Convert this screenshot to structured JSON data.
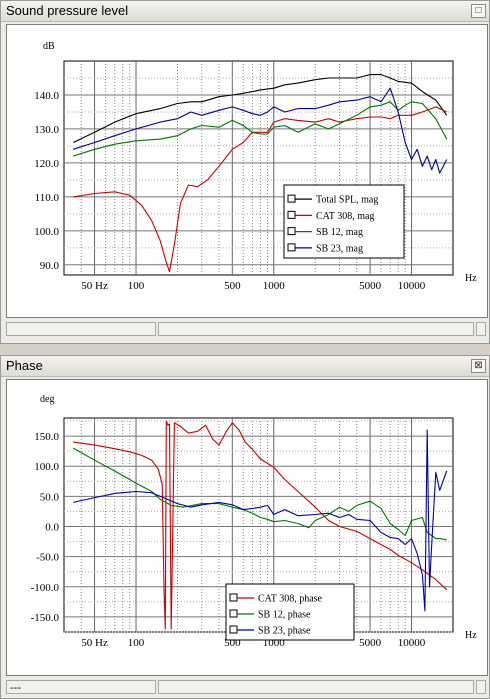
{
  "spl_window": {
    "title": "Sound pressure level",
    "close_glyph": "□",
    "status_cells": [
      "",
      "",
      ""
    ]
  },
  "phase_window": {
    "title": "Phase",
    "close_glyph": "⊠",
    "status_cells": [
      "---",
      "",
      ""
    ]
  },
  "chart_data": [
    {
      "type": "line",
      "x_scale": "log",
      "xlim": [
        30,
        20000
      ],
      "ylim": [
        87,
        150
      ],
      "grid": true,
      "legend_position": "bottom-right",
      "ylabel": "dB",
      "xlabel": "Hz",
      "yticks": [
        "140.0",
        "130.0",
        "120.0",
        "110.0",
        "100.0",
        "90.0"
      ],
      "ytick_values": [
        140,
        130,
        120,
        110,
        100,
        90
      ],
      "xticks": [
        "50 Hz",
        "100",
        "500",
        "1000",
        "5000",
        "10000"
      ],
      "xtick_values": [
        50,
        100,
        500,
        1000,
        5000,
        10000
      ],
      "series": [
        {
          "name": "Total SPL, mag",
          "color": "#000000",
          "x": [
            35,
            50,
            70,
            100,
            150,
            200,
            250,
            300,
            400,
            500,
            600,
            700,
            800,
            1000,
            1200,
            1500,
            2000,
            2500,
            3000,
            4000,
            5000,
            6000,
            7000,
            8000,
            10000,
            12000,
            15000,
            18000
          ],
          "y": [
            126,
            129,
            132,
            134.5,
            136,
            137.5,
            138,
            138,
            139.5,
            140,
            140.5,
            141,
            141.5,
            142,
            143,
            143.5,
            144.5,
            145,
            145,
            145,
            146,
            146,
            145,
            144,
            143.5,
            141,
            138.5,
            134
          ]
        },
        {
          "name": "CAT 308, mag",
          "color": "#cc0000",
          "x": [
            35,
            50,
            70,
            90,
            110,
            130,
            150,
            165,
            175,
            190,
            210,
            240,
            280,
            330,
            400,
            500,
            600,
            700,
            800,
            900,
            1000,
            1200,
            1500,
            2000,
            2500,
            3000,
            4000,
            5000,
            6000,
            7000,
            8000,
            10000,
            12000,
            15000,
            18000
          ],
          "y": [
            110,
            111,
            111.5,
            110.5,
            107.5,
            103,
            97,
            91,
            88,
            96,
            108,
            113.5,
            113,
            115,
            119,
            124,
            126,
            129,
            129,
            129,
            132,
            133,
            132.5,
            132,
            133,
            132,
            133,
            133.5,
            133.5,
            133,
            134,
            134,
            135,
            136.5,
            135
          ]
        },
        {
          "name": "SB 12, mag",
          "color": "#007700",
          "x": [
            35,
            50,
            70,
            100,
            150,
            200,
            250,
            300,
            400,
            500,
            600,
            700,
            800,
            900,
            1000,
            1200,
            1500,
            2000,
            2500,
            3000,
            4000,
            5000,
            6000,
            7000,
            8000,
            9000,
            10000,
            12000,
            15000,
            18000
          ],
          "y": [
            122,
            124,
            125.5,
            126.5,
            127,
            128,
            130,
            131,
            130.5,
            132.5,
            131,
            129,
            128.5,
            128.5,
            130.5,
            131,
            129,
            131.5,
            130,
            131.5,
            134,
            136.5,
            137,
            138,
            135.5,
            137,
            138,
            137.5,
            133,
            127
          ]
        },
        {
          "name": "SB 23, mag",
          "color": "#000099",
          "x": [
            35,
            50,
            70,
            100,
            150,
            200,
            250,
            300,
            400,
            500,
            600,
            700,
            800,
            900,
            1000,
            1200,
            1500,
            2000,
            2500,
            3000,
            4000,
            5000,
            6000,
            7000,
            8000,
            9000,
            10000,
            11000,
            12000,
            13000,
            14000,
            15000,
            16000,
            18000
          ],
          "y": [
            124,
            126,
            128,
            130,
            132,
            133,
            135,
            134,
            135.5,
            136.5,
            135.5,
            134.5,
            134,
            135,
            136.5,
            135,
            136,
            136,
            137,
            138,
            138.5,
            139.5,
            138,
            142,
            135,
            126,
            121,
            124,
            119,
            122,
            118,
            121,
            117,
            121
          ]
        }
      ]
    },
    {
      "type": "line",
      "x_scale": "log",
      "xlim": [
        30,
        20000
      ],
      "ylim": [
        -175,
        180
      ],
      "grid": true,
      "legend_position": "bottom-center",
      "ylabel": "deg",
      "xlabel": "Hz",
      "yticks": [
        "150.0",
        "100.0",
        "50.0",
        "0.0",
        "-50.0",
        "-100.0",
        "-150.0"
      ],
      "ytick_values": [
        150,
        100,
        50,
        0,
        -50,
        -100,
        -150
      ],
      "xticks": [
        "50 Hz",
        "100",
        "500",
        "1000",
        "5000",
        "10000"
      ],
      "xtick_values": [
        50,
        100,
        500,
        1000,
        5000,
        10000
      ],
      "series": [
        {
          "name": "CAT 308, phase",
          "color": "#cc0000",
          "x": [
            35,
            50,
            70,
            90,
            110,
            130,
            145,
            155,
            160,
            163,
            166,
            170,
            175,
            180,
            190,
            210,
            240,
            280,
            320,
            360,
            400,
            450,
            500,
            560,
            620,
            700,
            800,
            1000,
            1200,
            1500,
            2000,
            2500,
            3000,
            4000,
            5000,
            6000,
            7000,
            8000,
            10000,
            12000,
            15000,
            18000
          ],
          "y": [
            140,
            135,
            129,
            124,
            118,
            110,
            95,
            70,
            -110,
            -170,
            175,
            168,
            170,
            -170,
            172,
            166,
            155,
            158,
            168,
            145,
            135,
            157,
            172,
            160,
            140,
            128,
            112,
            98,
            78,
            58,
            32,
            10,
            0,
            -8,
            -20,
            -30,
            -38,
            -48,
            -60,
            -72,
            -88,
            -105
          ]
        },
        {
          "name": "SB 12, phase",
          "color": "#007700",
          "x": [
            35,
            50,
            70,
            100,
            130,
            150,
            180,
            220,
            300,
            400,
            500,
            600,
            700,
            800,
            900,
            1000,
            1200,
            1500,
            1800,
            2000,
            2500,
            3000,
            3500,
            4000,
            5000,
            6000,
            7000,
            8000,
            9000,
            10000,
            12000,
            13000,
            14000,
            15000,
            16000,
            18000
          ],
          "y": [
            130,
            110,
            92,
            72,
            58,
            45,
            35,
            32,
            38,
            38,
            32,
            28,
            22,
            15,
            12,
            8,
            10,
            5,
            -2,
            10,
            20,
            32,
            25,
            35,
            42,
            30,
            5,
            -5,
            -15,
            10,
            15,
            -10,
            -15,
            -20,
            -20,
            -22
          ]
        },
        {
          "name": "SB 23, phase",
          "color": "#0000aa",
          "x": [
            35,
            50,
            70,
            100,
            130,
            150,
            200,
            250,
            300,
            400,
            500,
            600,
            700,
            800,
            900,
            1000,
            1200,
            1500,
            2000,
            2500,
            3000,
            3500,
            4000,
            5000,
            6000,
            7000,
            8000,
            9000,
            10000,
            11000,
            12000,
            12500,
            13000,
            13500,
            14000,
            15000,
            16000,
            18000
          ],
          "y": [
            40,
            48,
            55,
            58,
            56,
            50,
            38,
            32,
            36,
            40,
            36,
            28,
            30,
            32,
            35,
            20,
            28,
            18,
            20,
            22,
            15,
            20,
            12,
            10,
            -10,
            -18,
            -20,
            -30,
            -20,
            -45,
            -80,
            -140,
            160,
            -100,
            -30,
            90,
            60,
            92
          ]
        }
      ]
    }
  ]
}
